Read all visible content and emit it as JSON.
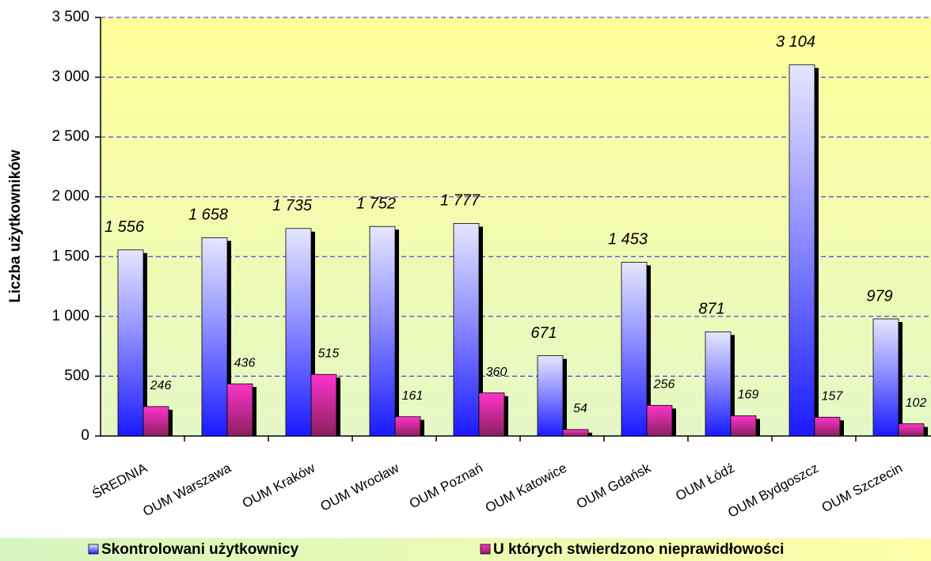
{
  "chart_data": {
    "type": "bar",
    "y_label": "Liczba użytkowników",
    "categories": [
      "ŚREDNIA",
      "OUM Warszawa",
      "OUM Kraków",
      "OUM Wrocław",
      "OUM Poznań",
      "OUM Katowice",
      "OUM Gdańsk",
      "OUM Łódź",
      "OUM Bydgoszcz",
      "OUM Szczecin"
    ],
    "series": [
      {
        "name": "Skontrolowani użytkownicy",
        "color": "#1a1aff",
        "values": [
          1556,
          1658,
          1735,
          1752,
          1777,
          671,
          1453,
          871,
          3104,
          979
        ],
        "value_labels": [
          "1 556",
          "1 658",
          "1 735",
          "1 752",
          "1 777",
          "671",
          "1 453",
          "871",
          "3 104",
          "979"
        ]
      },
      {
        "name": "U których stwierdzono nieprawidłowości",
        "color": "#e0109a",
        "values": [
          246,
          436,
          515,
          161,
          360,
          54,
          256,
          169,
          157,
          102
        ]
      }
    ],
    "ylim": [
      0,
      3500
    ],
    "yticks": [
      {
        "value": 0,
        "label": "0"
      },
      {
        "value": 500,
        "label": "500"
      },
      {
        "value": 1000,
        "label": "1 000"
      },
      {
        "value": 1500,
        "label": "1 500"
      },
      {
        "value": 2000,
        "label": "2 000"
      },
      {
        "value": 2500,
        "label": "2 500"
      },
      {
        "value": 3000,
        "label": "3 000"
      },
      {
        "value": 3500,
        "label": "3 500"
      }
    ],
    "grid": true
  }
}
